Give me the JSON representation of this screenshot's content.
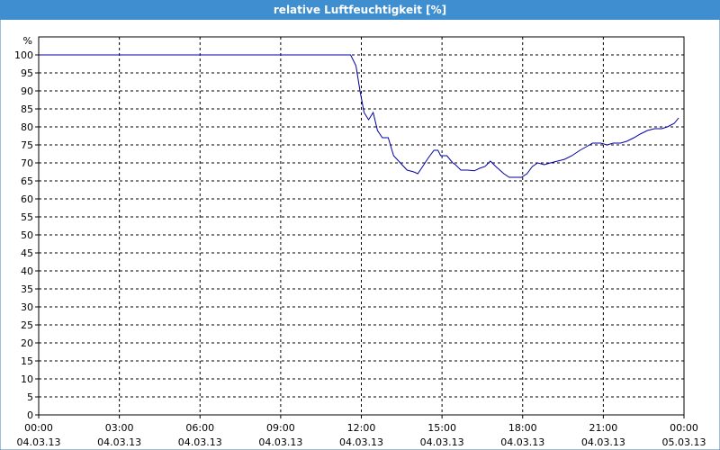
{
  "chart_data": {
    "type": "line",
    "title": "relative Luftfeuchtigkeit [%]",
    "y_label": "%",
    "x": [
      0,
      11.6,
      11.8,
      11.95,
      12.1,
      12.27,
      12.44,
      12.6,
      12.78,
      13.0,
      13.2,
      13.45,
      13.7,
      13.95,
      14.1,
      14.28,
      14.5,
      14.7,
      14.85,
      14.95,
      15.18,
      15.4,
      15.5,
      15.7,
      15.95,
      16.2,
      16.4,
      16.6,
      16.8,
      17.0,
      17.3,
      17.5,
      17.8,
      17.96,
      18.16,
      18.36,
      18.56,
      18.8,
      19.03,
      19.3,
      19.56,
      19.83,
      20.13,
      20.37,
      20.6,
      20.9,
      21.14,
      21.37,
      21.64,
      21.87,
      22.14,
      22.37,
      22.64,
      22.9,
      23.17,
      23.38,
      23.64,
      23.8
    ],
    "series": [
      {
        "name": "relative Luftfeuchtigkeit",
        "color": "#0000a0",
        "values": [
          100,
          100,
          97,
          90,
          84,
          82,
          84,
          79,
          77,
          77,
          72,
          70,
          68,
          67.5,
          67,
          69,
          71.5,
          73.5,
          73.5,
          72,
          72,
          70,
          69.5,
          68,
          68,
          67.8,
          68.5,
          69,
          70.5,
          69,
          67,
          66,
          66,
          66,
          67,
          69,
          70,
          69.5,
          70,
          70.5,
          71,
          72,
          73.5,
          74.5,
          75.5,
          75.5,
          75,
          75.5,
          75.5,
          76,
          77,
          78,
          79,
          79.5,
          79.5,
          80,
          81,
          82.5
        ]
      }
    ],
    "xlim": [
      0,
      24
    ],
    "ylim": [
      0,
      105
    ],
    "xticks": [
      {
        "value": 0,
        "label": "00:00",
        "date": "04.03.13"
      },
      {
        "value": 3,
        "label": "03:00",
        "date": "04.03.13"
      },
      {
        "value": 6,
        "label": "06:00",
        "date": "04.03.13"
      },
      {
        "value": 9,
        "label": "09:00",
        "date": "04.03.13"
      },
      {
        "value": 12,
        "label": "12:00",
        "date": "04.03.13"
      },
      {
        "value": 15,
        "label": "15:00",
        "date": "04.03.13"
      },
      {
        "value": 18,
        "label": "18:00",
        "date": "04.03.13"
      },
      {
        "value": 21,
        "label": "21:00",
        "date": "04.03.13"
      },
      {
        "value": 24,
        "label": "00:00",
        "date": "05.03.13"
      }
    ],
    "yticks": [
      0,
      5,
      10,
      15,
      20,
      25,
      30,
      35,
      40,
      45,
      50,
      55,
      60,
      65,
      70,
      75,
      80,
      85,
      90,
      95,
      100
    ],
    "grid": true
  }
}
